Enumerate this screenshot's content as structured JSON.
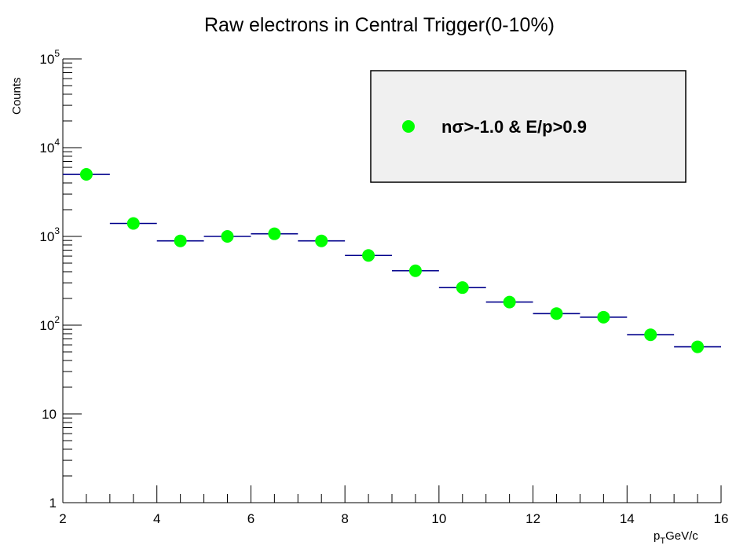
{
  "chart_data": {
    "type": "scatter",
    "title": "Raw electrons in Central Trigger(0-10%)",
    "ylabel": "Counts",
    "xlabel": "p_T GeV/c",
    "xlabel_main": "p",
    "xlabel_sub": "T",
    "xlabel_unit": "GeV/c",
    "xlim": [
      2,
      16
    ],
    "ylim": [
      1,
      100000
    ],
    "yscale": "log",
    "x_ticks": [
      "2",
      "4",
      "6",
      "8",
      "10",
      "12",
      "14",
      "16"
    ],
    "y_ticks": [
      {
        "base": "1",
        "exp": ""
      },
      {
        "base": "10",
        "exp": ""
      },
      {
        "base": "10",
        "exp": "2"
      },
      {
        "base": "10",
        "exp": "3"
      },
      {
        "base": "10",
        "exp": "4"
      },
      {
        "base": "10",
        "exp": "5"
      }
    ],
    "legend_placement": "top-right",
    "series": [
      {
        "name": "nσ>-1.0 & E/p>0.9",
        "color": "#00ff00",
        "bar_color": "#00008b",
        "x": [
          2.5,
          3.5,
          4.5,
          5.5,
          6.5,
          7.5,
          8.5,
          9.5,
          10.5,
          11.5,
          12.5,
          13.5,
          14.5,
          15.5
        ],
        "x_halfwidth": 0.5,
        "values": [
          5000,
          1400,
          890,
          1000,
          1070,
          890,
          610,
          410,
          265,
          182,
          135,
          123,
          78,
          57
        ]
      }
    ]
  }
}
